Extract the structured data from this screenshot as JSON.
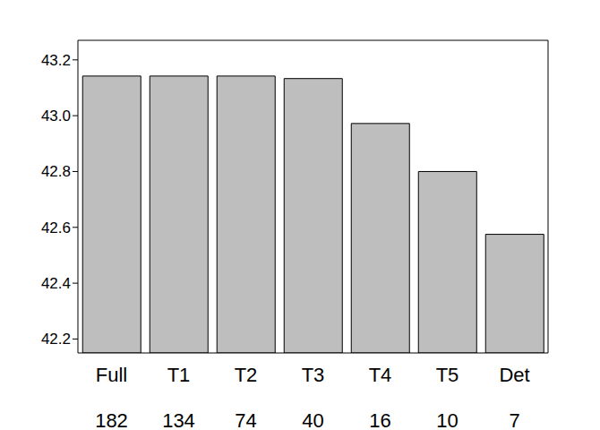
{
  "chart_data": {
    "type": "bar",
    "categories": [
      "Full",
      "T1",
      "T2",
      "T3",
      "T4",
      "T5",
      "Det"
    ],
    "counts": [
      182,
      134,
      74,
      40,
      16,
      10,
      7
    ],
    "values": [
      43.142,
      43.142,
      43.142,
      43.133,
      42.972,
      42.8,
      42.575
    ],
    "color": "#bebebe",
    "ylim": [
      42.15,
      43.27
    ],
    "yticks": [
      42.2,
      42.4,
      42.6,
      42.8,
      {
        "value": 43,
        "label": "43.0"
      },
      43.2
    ]
  }
}
